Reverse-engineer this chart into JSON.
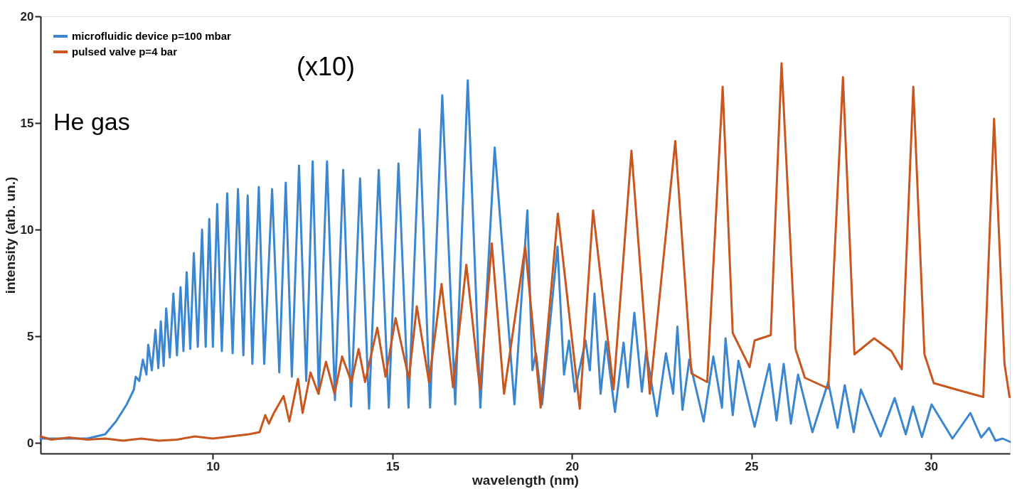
{
  "chart_data": {
    "type": "line",
    "xlabel": "wavelength (nm)",
    "ylabel": "intensity (arb. un.)",
    "xlim": [
      5.2,
      32.2
    ],
    "ylim": [
      -0.5,
      20
    ],
    "xticks": [
      10,
      15,
      20,
      25,
      30
    ],
    "yticks": [
      0,
      5,
      10,
      15,
      20
    ],
    "grid": false,
    "legend": "top left",
    "line_style": "solid",
    "marker": "none",
    "annotations": [
      "He gas",
      "(x10)"
    ],
    "series": [
      {
        "name": "microfluidic device p=100 mbar",
        "color": "#3a86d0",
        "x": [
          5.2,
          6.0,
          6.5,
          7.0,
          7.3,
          7.6,
          7.8,
          7.85,
          7.95,
          8.05,
          8.15,
          8.2,
          8.3,
          8.4,
          8.48,
          8.55,
          8.63,
          8.7,
          8.8,
          8.9,
          9.0,
          9.1,
          9.18,
          9.27,
          9.37,
          9.47,
          9.58,
          9.7,
          9.8,
          9.9,
          10.0,
          10.12,
          10.25,
          10.4,
          10.55,
          10.7,
          10.85,
          10.97,
          11.1,
          11.28,
          11.43,
          11.65,
          11.85,
          12.03,
          12.2,
          12.4,
          12.6,
          12.78,
          12.95,
          13.18,
          13.4,
          13.63,
          13.85,
          14.1,
          14.35,
          14.62,
          14.9,
          15.17,
          15.45,
          15.76,
          16.05,
          16.39,
          16.75,
          17.1,
          17.45,
          17.85,
          18.4,
          18.76,
          18.9,
          19.0,
          19.17,
          19.6,
          19.78,
          19.92,
          20.08,
          20.38,
          20.5,
          20.63,
          20.8,
          20.95,
          21.2,
          21.44,
          21.56,
          21.74,
          21.95,
          22.07,
          22.37,
          22.62,
          22.82,
          22.94,
          23.08,
          23.27,
          23.67,
          23.94,
          24.18,
          24.28,
          24.48,
          24.64,
          25.09,
          25.5,
          25.7,
          25.9,
          26.1,
          26.3,
          26.7,
          27.14,
          27.4,
          27.6,
          27.85,
          28.05,
          28.6,
          28.99,
          29.3,
          29.5,
          29.75,
          30.02,
          30.6,
          31.1,
          31.4,
          31.62,
          31.8,
          32.0,
          32.2
        ],
        "values": [
          0.2,
          0.2,
          0.2,
          0.4,
          1.0,
          1.8,
          2.5,
          3.1,
          2.9,
          3.9,
          3.2,
          4.6,
          3.4,
          5.3,
          3.5,
          5.7,
          3.6,
          6.3,
          4.0,
          7.0,
          4.1,
          7.3,
          4.3,
          8.0,
          4.4,
          8.9,
          4.5,
          10.0,
          4.5,
          10.5,
          4.5,
          11.2,
          4.3,
          11.7,
          4.2,
          11.9,
          4.1,
          11.6,
          3.7,
          12.0,
          3.7,
          11.9,
          3.3,
          12.2,
          3.1,
          13.0,
          2.9,
          13.2,
          2.3,
          13.2,
          2.0,
          12.8,
          1.7,
          12.4,
          1.6,
          12.8,
          1.65,
          13.1,
          1.65,
          14.7,
          1.65,
          16.3,
          1.8,
          17.0,
          1.65,
          13.85,
          1.8,
          10.9,
          3.4,
          4.2,
          1.8,
          9.2,
          3.2,
          4.8,
          2.4,
          4.8,
          3.4,
          7.0,
          2.3,
          4.75,
          1.45,
          4.7,
          2.6,
          6.1,
          2.4,
          4.3,
          1.25,
          4.2,
          2.3,
          5.45,
          1.55,
          3.9,
          1.0,
          4.05,
          1.65,
          4.9,
          1.3,
          3.85,
          0.75,
          3.7,
          1.05,
          3.7,
          0.9,
          3.2,
          0.5,
          2.85,
          0.7,
          2.7,
          0.5,
          2.5,
          0.3,
          2.1,
          0.4,
          1.7,
          0.27,
          1.8,
          0.2,
          1.4,
          0.25,
          0.7,
          0.1,
          0.2,
          0.05
        ]
      },
      {
        "name": "pulsed valve p=4 bar",
        "color": "#c8561e",
        "x": [
          5.2,
          5.5,
          6.0,
          6.5,
          7.0,
          7.5,
          8.0,
          8.5,
          9.0,
          9.5,
          10.0,
          10.5,
          11.0,
          11.3,
          11.46,
          11.56,
          11.7,
          11.97,
          12.13,
          12.37,
          12.5,
          12.72,
          12.94,
          13.15,
          13.39,
          13.6,
          13.86,
          14.06,
          14.24,
          14.58,
          14.81,
          15.09,
          15.46,
          15.68,
          16.02,
          16.37,
          16.69,
          17.06,
          17.44,
          17.77,
          18.11,
          18.7,
          19.13,
          19.61,
          20.22,
          20.59,
          21.16,
          21.66,
          22.17,
          22.88,
          23.33,
          23.77,
          24.2,
          24.48,
          24.95,
          25.09,
          25.54,
          25.84,
          26.23,
          26.49,
          27.14,
          27.55,
          27.87,
          28.42,
          28.9,
          29.19,
          29.51,
          29.82,
          30.08,
          30.81,
          31.46,
          31.76,
          32.05,
          32.19
        ],
        "values": [
          0.3,
          0.15,
          0.25,
          0.15,
          0.2,
          0.1,
          0.2,
          0.1,
          0.15,
          0.3,
          0.2,
          0.3,
          0.4,
          0.5,
          1.3,
          0.9,
          1.4,
          2.2,
          1.0,
          3.0,
          1.4,
          3.3,
          2.3,
          3.8,
          2.3,
          4.05,
          2.85,
          4.4,
          2.85,
          5.4,
          3.1,
          5.85,
          3.0,
          6.4,
          2.85,
          7.45,
          2.6,
          8.35,
          2.5,
          9.35,
          2.3,
          9.2,
          1.65,
          10.75,
          1.6,
          10.9,
          2.5,
          13.7,
          2.3,
          14.15,
          3.25,
          2.85,
          16.7,
          5.15,
          3.55,
          4.8,
          5.05,
          17.8,
          4.4,
          3.05,
          2.55,
          17.15,
          4.15,
          4.9,
          4.3,
          3.45,
          16.7,
          4.15,
          2.8,
          2.45,
          2.15,
          15.2,
          3.7,
          2.15
        ]
      }
    ]
  }
}
